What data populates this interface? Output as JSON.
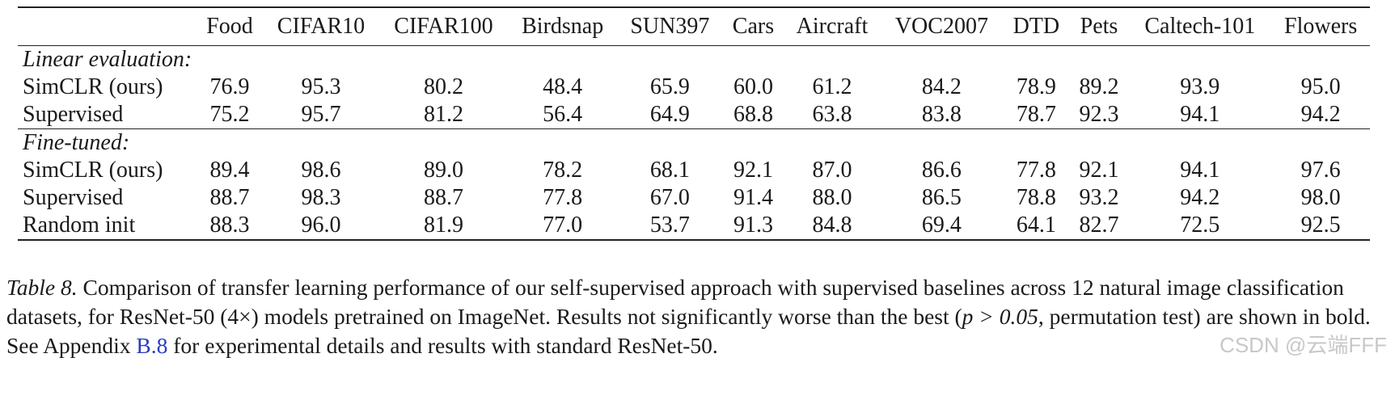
{
  "table": {
    "columns": [
      "Food",
      "CIFAR10",
      "CIFAR100",
      "Birdsnap",
      "SUN397",
      "Cars",
      "Aircraft",
      "VOC2007",
      "DTD",
      "Pets",
      "Caltech-101",
      "Flowers"
    ],
    "sections": [
      {
        "label": "Linear evaluation:",
        "rows": [
          {
            "method": "SimCLR (ours)",
            "values": [
              "76.9",
              "95.3",
              "80.2",
              "48.4",
              "65.9",
              "60.0",
              "61.2",
              "84.2",
              "78.9",
              "89.2",
              "93.9",
              "95.0"
            ],
            "bold": [
              true,
              true,
              false,
              false,
              true,
              false,
              false,
              true,
              true,
              false,
              true,
              true
            ]
          },
          {
            "method": "Supervised",
            "values": [
              "75.2",
              "95.7",
              "81.2",
              "56.4",
              "64.9",
              "68.8",
              "63.8",
              "83.8",
              "78.7",
              "92.3",
              "94.1",
              "94.2"
            ],
            "bold": [
              false,
              true,
              true,
              true,
              false,
              true,
              true,
              false,
              true,
              true,
              true,
              false
            ]
          }
        ]
      },
      {
        "label": "Fine-tuned:",
        "rows": [
          {
            "method": "SimCLR (ours)",
            "values": [
              "89.4",
              "98.6",
              "89.0",
              "78.2",
              "68.1",
              "92.1",
              "87.0",
              "86.6",
              "77.8",
              "92.1",
              "94.1",
              "97.6"
            ],
            "bold": [
              true,
              true,
              true,
              true,
              true,
              true,
              true,
              true,
              true,
              false,
              true,
              false
            ]
          },
          {
            "method": "Supervised",
            "values": [
              "88.7",
              "98.3",
              "88.7",
              "77.8",
              "67.0",
              "91.4",
              "88.0",
              "86.5",
              "78.8",
              "93.2",
              "94.2",
              "98.0"
            ],
            "bold": [
              false,
              false,
              true,
              true,
              false,
              false,
              true,
              false,
              true,
              true,
              true,
              true
            ]
          },
          {
            "method": "Random init",
            "values": [
              "88.3",
              "96.0",
              "81.9",
              "77.0",
              "53.7",
              "91.3",
              "84.8",
              "69.4",
              "64.1",
              "82.7",
              "72.5",
              "92.5"
            ],
            "bold": [
              false,
              false,
              false,
              true,
              false,
              false,
              false,
              false,
              false,
              false,
              false,
              false
            ]
          }
        ]
      }
    ]
  },
  "caption": {
    "label": "Table 8.",
    "text_1": " Comparison of transfer learning performance of our self-supervised approach with supervised baselines across 12 natural image classification datasets, for ResNet-50 (4×) models pretrained on ImageNet. Results not significantly worse than the best (",
    "math": "p > 0.05",
    "text_2": ", permutation test) are shown in bold. See Appendix ",
    "link": "B.8",
    "text_3": " for experimental details and results with standard ResNet-50."
  },
  "watermark": "CSDN @云端FFF"
}
